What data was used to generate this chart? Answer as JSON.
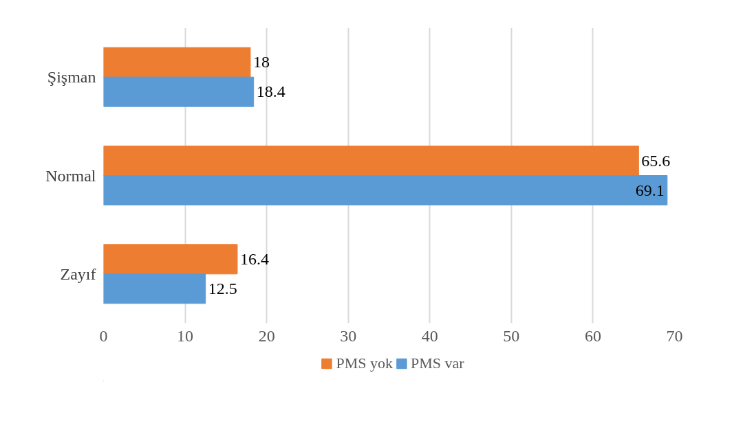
{
  "chart_data": {
    "type": "bar",
    "orientation": "horizontal",
    "categories": [
      "Şişman",
      "Normal",
      "Zayıf"
    ],
    "series": [
      {
        "name": "PMS yok",
        "color": "#ed7d31",
        "values": [
          18,
          65.6,
          16.4
        ]
      },
      {
        "name": "PMS var",
        "color": "#5b9bd5",
        "values": [
          18.4,
          69.1,
          12.5
        ]
      }
    ],
    "xlim": [
      0,
      70
    ],
    "xticks": [
      0,
      10,
      20,
      30,
      40,
      50,
      60,
      70
    ],
    "grid": "x",
    "legend": "bottom",
    "data_labels": true
  }
}
